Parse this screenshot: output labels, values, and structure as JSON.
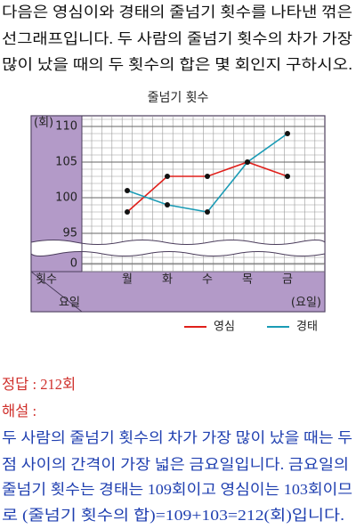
{
  "question": {
    "lines": [
      "다음은 영심이와 경태의 줄넘기 횟수를 나타낸 꺾은",
      "선그래프입니다. 두 사람의 줄넘기 횟수의 차가 가장",
      "많이 났을 때의 두 횟수의 합은 몇 회인지 구하시오."
    ]
  },
  "chart_data": {
    "type": "line",
    "title": "줄넘기 횟수",
    "y_label": "(회)",
    "x_label": "(요일)",
    "corner_labels": {
      "top": "횟수",
      "bottom": "요일"
    },
    "categories": [
      "월",
      "화",
      "수",
      "목",
      "금"
    ],
    "series": [
      {
        "name": "영심",
        "color": "#e0201b",
        "values": [
          98,
          103,
          103,
          105,
          103
        ]
      },
      {
        "name": "경태",
        "color": "#1a9bb5",
        "values": [
          101,
          99,
          98,
          105,
          109
        ]
      }
    ],
    "ylim": [
      95,
      110
    ],
    "yticks": [
      95,
      100,
      105,
      110
    ],
    "axis_break_tick": 0,
    "grid": true
  },
  "answer": "정답 : 212회",
  "explanation": {
    "heading": "해설 :",
    "lines": [
      "두 사람의 줄넘기 횟수의 차가 가장 많이 났을 때는 두",
      "점 사이의 간격이 가장 넓은 금요일입니다. 금요일의",
      "줄넘기 횟수는 경태는 109회이고 영심이는 103회이므",
      "로 (줄넘기 횟수의 합)=109+103=212(회)입니다."
    ]
  }
}
